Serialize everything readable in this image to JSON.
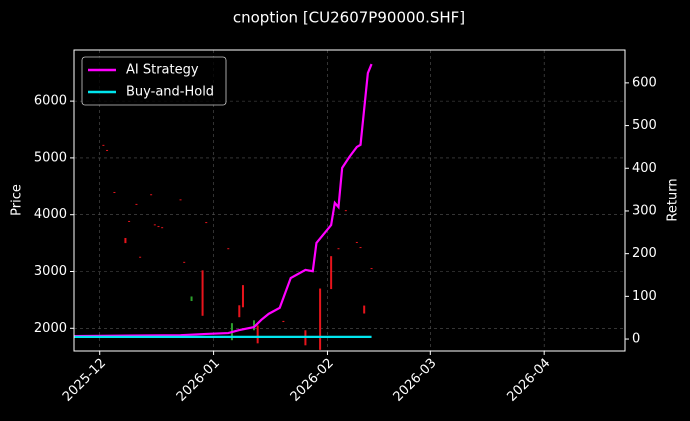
{
  "chart_data": {
    "type": "candlestick",
    "title": "cnoption [CU2607P90000.SHF]",
    "ylabel": "Price",
    "y2label": "Return",
    "xlim": [
      -7,
      143
    ],
    "xticks": [
      {
        "value": 0,
        "label": "2025-12"
      },
      {
        "value": 31,
        "label": "2026-01"
      },
      {
        "value": 62,
        "label": "2026-02"
      },
      {
        "value": 90,
        "label": "2026-03"
      },
      {
        "value": 121,
        "label": "2026-04"
      }
    ],
    "ylim": [
      1600,
      6900
    ],
    "yticks": [
      2000,
      3000,
      4000,
      5000,
      6000
    ],
    "y2lim": [
      -28,
      677
    ],
    "y2ticks": [
      0,
      100,
      200,
      300,
      400,
      500,
      600
    ],
    "grid": true,
    "legend": "upper left",
    "up_color": "#2ca02c",
    "down_color": "#e8141c",
    "x": [
      1,
      2,
      4,
      7,
      8,
      10,
      11,
      14,
      15,
      16,
      17,
      22,
      23,
      25,
      28,
      29,
      35,
      36,
      38,
      39,
      42,
      43,
      50,
      56,
      60,
      63,
      65,
      67,
      70,
      71,
      72,
      74
    ],
    "open": [
      5230,
      5140,
      4400,
      3590,
      3890,
      4190,
      3260,
      4360,
      3830,
      3800,
      3780,
      4270,
      3170,
      2480,
      3020,
      3870,
      3410,
      1790,
      2405,
      2760,
      1965,
      2050,
      2130,
      1965,
      2700,
      3270,
      3410,
      4080,
      3520,
      3430,
      2400,
      3060
    ],
    "close": [
      5220,
      5130,
      4390,
      3500,
      3880,
      4180,
      3250,
      4350,
      3820,
      3790,
      3770,
      4260,
      3160,
      2560,
      2220,
      3860,
      3400,
      2090,
      2195,
      2370,
      2140,
      1735,
      2110,
      1700,
      1620,
      2690,
      3400,
      4070,
      3510,
      3420,
      2260,
      3050
    ],
    "series": [
      {
        "name": "AI Strategy",
        "color": "#ff00ff",
        "axis": "y2",
        "x": [
          -7,
          22,
          29,
          35,
          38,
          42,
          44,
          46,
          49,
          52,
          56,
          58,
          59,
          63,
          64,
          65,
          66,
          68,
          70,
          71,
          73,
          74
        ],
        "values": [
          7,
          9,
          12,
          14,
          21,
          28,
          45,
          59,
          73,
          143,
          162,
          159,
          225,
          267,
          319,
          309,
          401,
          427,
          450,
          455,
          623,
          644
        ]
      },
      {
        "name": "Buy-and-Hold",
        "color": "#00e5ee",
        "axis": "y2",
        "x": [
          -7,
          74
        ],
        "values": [
          5,
          5
        ]
      }
    ]
  }
}
